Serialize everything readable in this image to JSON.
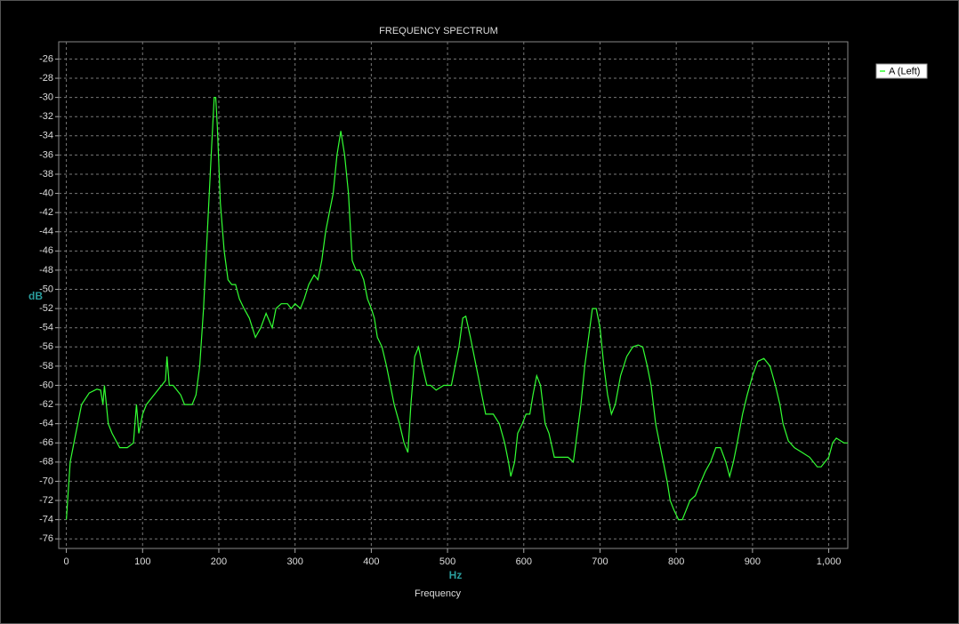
{
  "chart_data": {
    "type": "line",
    "title": "FREQUENCY SPECTRUM",
    "x_label": "Frequency",
    "x_unit": "Hz",
    "y_label": "dB",
    "x": [
      0,
      5,
      10,
      20,
      30,
      40,
      45,
      48,
      50,
      55,
      60,
      70,
      80,
      88,
      92,
      95,
      100,
      105,
      110,
      120,
      130,
      132,
      135,
      140,
      150,
      155,
      165,
      170,
      175,
      180,
      185,
      190,
      194,
      196,
      198,
      202,
      207,
      212,
      217,
      222,
      227,
      233,
      240,
      248,
      255,
      262,
      270,
      275,
      282,
      290,
      295,
      300,
      307,
      312,
      318,
      325,
      330,
      335,
      340,
      345,
      350,
      355,
      360,
      365,
      370,
      375,
      380,
      385,
      390,
      395,
      400,
      404,
      408,
      414,
      420,
      425,
      430,
      437,
      443,
      448,
      452,
      457,
      462,
      467,
      473,
      478,
      485,
      495,
      505,
      510,
      515,
      520,
      524,
      530,
      535,
      540,
      545,
      550,
      560,
      568,
      575,
      580,
      583,
      588,
      592,
      598,
      603,
      608,
      612,
      617,
      622,
      628,
      633,
      640,
      650,
      658,
      665,
      670,
      675,
      680,
      685,
      690,
      695,
      700,
      705,
      710,
      715,
      720,
      727,
      735,
      743,
      750,
      756,
      762,
      767,
      773,
      778,
      783,
      788,
      792,
      797,
      803,
      808,
      813,
      818,
      825,
      830,
      838,
      845,
      852,
      858,
      865,
      870,
      875,
      880,
      887,
      893,
      900,
      907,
      915,
      923,
      930,
      936,
      940,
      947,
      955,
      965,
      975,
      985,
      990,
      995,
      1000,
      1005,
      1010,
      1020,
      1025
    ],
    "series": [
      {
        "name": "A (Left)",
        "color": "#33ff33",
        "values": [
          -74,
          -68,
          -66,
          -62,
          -60.8,
          -60.4,
          -60.5,
          -62,
          -60,
          -64,
          -65,
          -66.5,
          -66.5,
          -66,
          -62,
          -65,
          -63,
          -62,
          -61.5,
          -60.5,
          -59.5,
          -57,
          -60,
          -60,
          -61,
          -62,
          -62,
          -61,
          -58,
          -52,
          -44,
          -36,
          -30,
          -30,
          -33,
          -41,
          -46,
          -49,
          -49.5,
          -49.5,
          -51,
          -52,
          -53,
          -55,
          -54,
          -52.5,
          -54,
          -52,
          -51.5,
          -51.5,
          -52,
          -51.5,
          -52,
          -51,
          -49.5,
          -48.5,
          -49,
          -47,
          -44,
          -42,
          -40,
          -36,
          -33.5,
          -36,
          -40,
          -47,
          -48,
          -48,
          -49,
          -51,
          -52,
          -53,
          -55,
          -56,
          -58,
          -60,
          -62,
          -64,
          -66,
          -67,
          -62,
          -57,
          -56,
          -58,
          -60,
          -60,
          -60.5,
          -60,
          -60,
          -58,
          -56,
          -53,
          -52.8,
          -55,
          -57,
          -59,
          -61,
          -63,
          -63,
          -64,
          -66,
          -68,
          -69.5,
          -68,
          -65,
          -64,
          -63,
          -63,
          -61,
          -59,
          -60,
          -64,
          -65,
          -67.5,
          -67.5,
          -67.5,
          -68,
          -65,
          -62,
          -58,
          -55,
          -52,
          -52,
          -54,
          -58,
          -61,
          -63,
          -62,
          -59,
          -57,
          -56,
          -55.8,
          -56,
          -58,
          -60,
          -64,
          -66,
          -68,
          -70,
          -72,
          -73,
          -74,
          -74,
          -73,
          -72,
          -71.5,
          -70.5,
          -69,
          -68,
          -66.5,
          -66.5,
          -68,
          -69.5,
          -68,
          -66,
          -63,
          -61,
          -59,
          -57.5,
          -57.2,
          -58,
          -60,
          -62,
          -64,
          -65.8,
          -66.5,
          -67,
          -67.5,
          -68.5,
          -68.5,
          -68,
          -67.5,
          -66,
          -65.5,
          -66,
          -66
        ]
      }
    ],
    "xlim": [
      -10,
      1025
    ],
    "ylim": [
      -77,
      -24.2
    ],
    "xticks": [
      0,
      100,
      200,
      300,
      400,
      500,
      600,
      700,
      800,
      900,
      {
        "value": 1000,
        "label": "1,000"
      }
    ],
    "yticks": [
      -26,
      -28,
      -30,
      -32,
      -34,
      -36,
      -38,
      -40,
      -42,
      -44,
      -46,
      -48,
      -50,
      -52,
      -54,
      -56,
      -58,
      -60,
      -62,
      -64,
      -66,
      -68,
      -70,
      -72,
      -74,
      -76
    ],
    "grid": true,
    "legend": "upper right"
  }
}
